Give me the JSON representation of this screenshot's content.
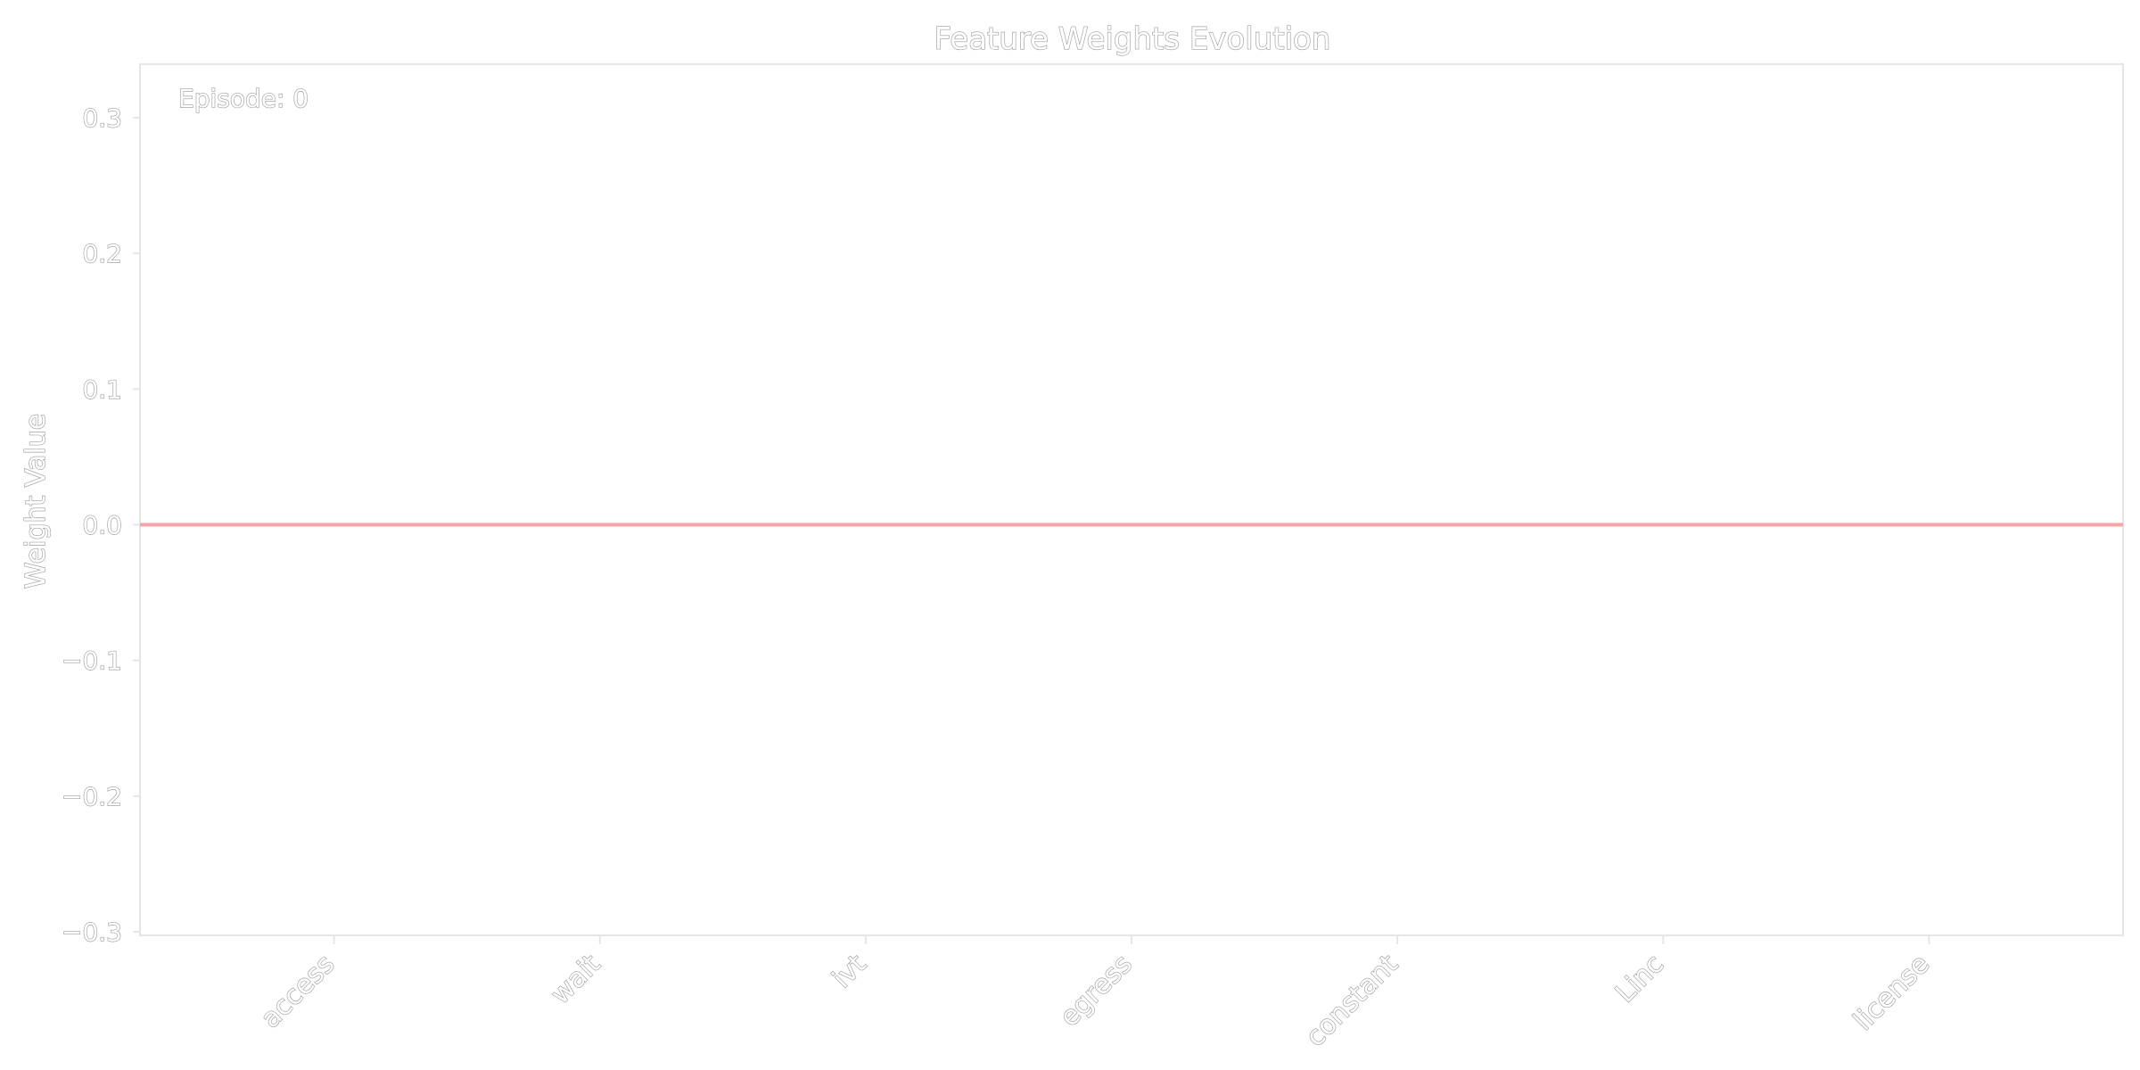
{
  "chart_data": {
    "type": "bar",
    "title": "Feature Weights Evolution",
    "ylabel": "Weight Value",
    "xlabel": "",
    "categories": [
      "access",
      "wait",
      "ivt",
      "egress",
      "constant",
      "Linc",
      "license"
    ],
    "values": [
      0,
      0,
      0,
      0,
      0,
      0,
      0
    ],
    "ylim": [
      -0.3,
      0.3
    ],
    "yticks": [
      0.3,
      0.2,
      0.1,
      0.0,
      -0.1,
      -0.2,
      -0.3
    ],
    "ytick_labels": [
      "0.3",
      "0.2",
      "0.1",
      "0.0",
      "−0.1",
      "−0.2",
      "−0.3"
    ],
    "xlim": [
      -0.73,
      6.73
    ],
    "reference_line": {
      "y": 0,
      "color": "#f4a6a6"
    },
    "annotation": "Episode: 0",
    "grid": false,
    "legend": "none"
  },
  "colors": {
    "text_outline": "#9e9e9e",
    "axes_frame": "#e6e6e6",
    "zero_line": "#f4a6a6"
  }
}
